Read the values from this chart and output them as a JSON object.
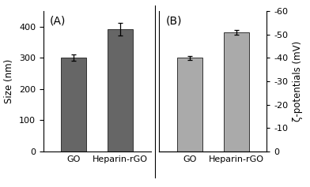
{
  "panel_A": {
    "categories": [
      "GO",
      "Heparin-rGO"
    ],
    "values": [
      302,
      393
    ],
    "errors": [
      10,
      20
    ],
    "bar_color": "#666666",
    "ylabel": "Size (nm)",
    "ylim": [
      0,
      450
    ],
    "yticks": [
      0,
      100,
      200,
      300,
      400
    ],
    "label": "(A)"
  },
  "panel_B": {
    "categories": [
      "GO",
      "Heparin-rGO"
    ],
    "values": [
      40,
      51
    ],
    "errors": [
      1,
      1
    ],
    "bar_color": "#aaaaaa",
    "ylabel": "ζ-potentials (mV)",
    "ylim": [
      0,
      60
    ],
    "yticks": [
      0,
      10,
      20,
      30,
      40,
      50,
      60
    ],
    "ytick_labels": [
      "0",
      "-10",
      "-20",
      "-30",
      "-40",
      "-50",
      "-60"
    ],
    "label": "(B)"
  },
  "background_color": "#ffffff",
  "fig_width": 3.92,
  "fig_height": 2.37,
  "dpi": 100
}
